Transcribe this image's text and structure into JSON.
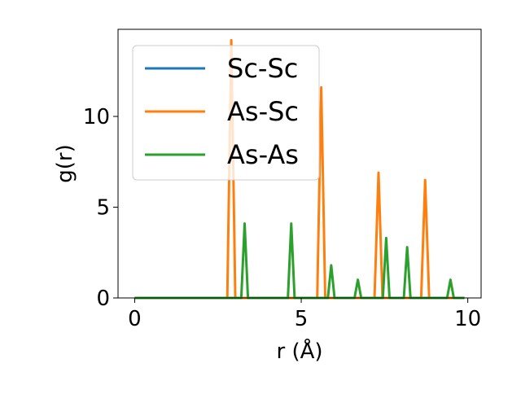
{
  "chart_data": {
    "type": "line",
    "xlabel": "r (Å)",
    "ylabel": "g(r)",
    "xlim": [
      -0.5,
      10.4
    ],
    "ylim": [
      0,
      14.8
    ],
    "xticks": [
      0,
      5,
      10
    ],
    "yticks": [
      0,
      5,
      10
    ],
    "xtick_labels": [
      "0",
      "5",
      "10"
    ],
    "ytick_labels": [
      "0",
      "5",
      "10"
    ],
    "grid": false,
    "legend": "top-left",
    "series": [
      {
        "name": "Sc-Sc",
        "color": "#1f77b4",
        "x": [
          0,
          9.9
        ],
        "y": [
          0,
          0
        ]
      },
      {
        "name": "As-Sc",
        "color": "#ff7f0e",
        "x": [
          0,
          2.78,
          2.9,
          3.02,
          5.48,
          5.6,
          5.72,
          7.2,
          7.32,
          7.44,
          8.6,
          8.72,
          8.84,
          9.9
        ],
        "y": [
          0,
          0,
          14.2,
          0,
          0,
          11.6,
          0,
          0,
          6.9,
          0,
          0,
          6.5,
          0,
          0
        ]
      },
      {
        "name": "As-As",
        "color": "#2ca02c",
        "x": [
          0,
          3.2,
          3.3,
          3.4,
          4.6,
          4.7,
          4.8,
          5.8,
          5.9,
          6.0,
          6.6,
          6.7,
          6.8,
          7.45,
          7.55,
          7.65,
          8.08,
          8.18,
          8.28,
          9.38,
          9.48,
          9.58,
          9.9
        ],
        "y": [
          0,
          0,
          4.1,
          0,
          0,
          4.1,
          0,
          0,
          1.8,
          0,
          0,
          1.0,
          0,
          0,
          3.3,
          0,
          0,
          2.8,
          0,
          0,
          1.0,
          0,
          0
        ]
      }
    ]
  }
}
